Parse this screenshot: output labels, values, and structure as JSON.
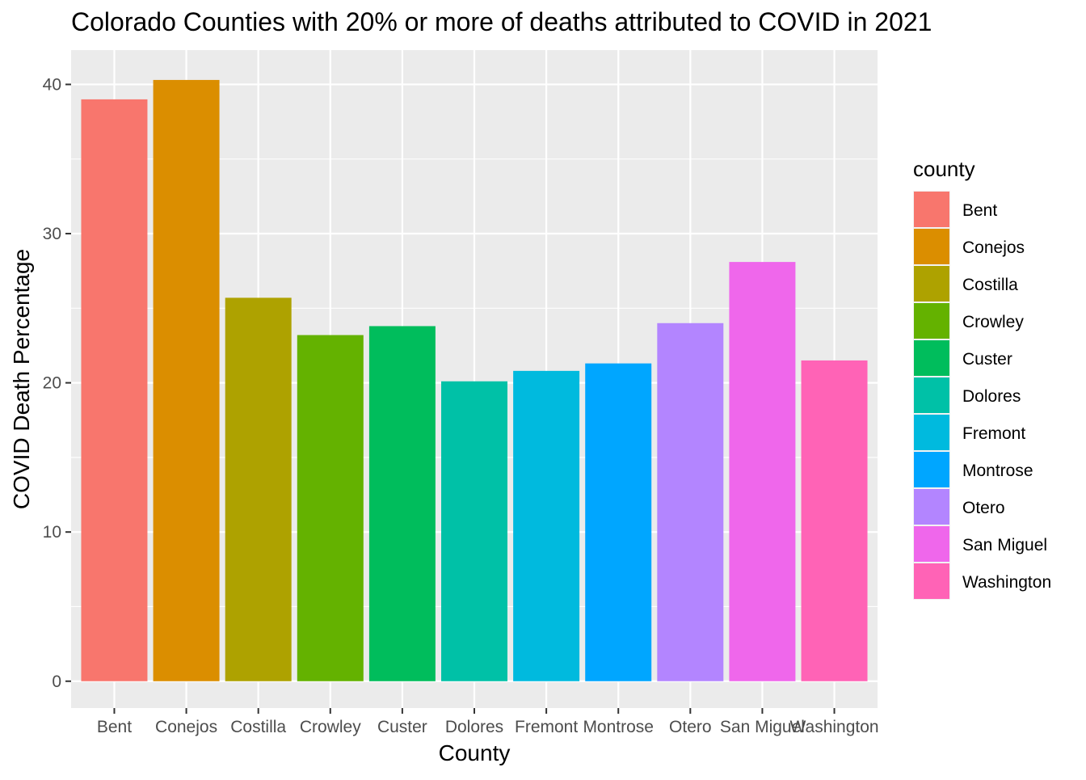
{
  "chart_data": {
    "type": "bar",
    "title": "Colorado Counties with 20% or more of deaths attributed to COVID in 2021",
    "xlabel": "County",
    "ylabel": "COVID Death Percentage",
    "categories": [
      "Bent",
      "Conejos",
      "Costilla",
      "Crowley",
      "Custer",
      "Dolores",
      "Fremont",
      "Montrose",
      "Otero",
      "San Miguel",
      "Washington"
    ],
    "values": [
      39.0,
      40.3,
      25.7,
      23.2,
      23.8,
      20.1,
      20.8,
      21.3,
      24.0,
      28.1,
      21.5
    ],
    "colors": [
      "#F8766D",
      "#DB8E00",
      "#AEA200",
      "#64B200",
      "#00BD5C",
      "#00C1A7",
      "#00BADE",
      "#00A6FF",
      "#B385FF",
      "#EF67EB",
      "#FF63B6"
    ],
    "ylim": [
      -1.8,
      42.3
    ],
    "yticks": [
      0,
      10,
      20,
      30,
      40
    ],
    "grid": true,
    "legend": {
      "title": "county",
      "position": "right"
    }
  }
}
